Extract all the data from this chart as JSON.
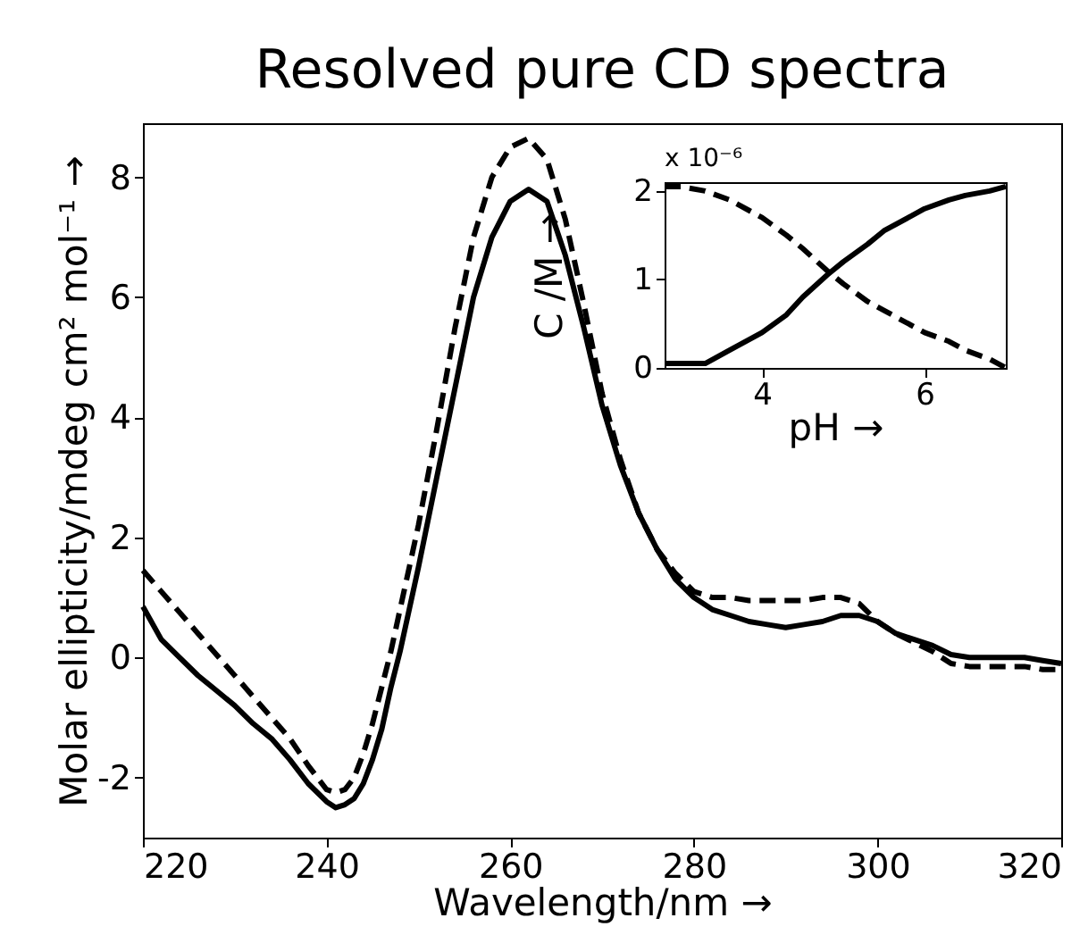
{
  "chart_data": [
    {
      "type": "line",
      "title": "Resolved pure CD spectra",
      "xlabel": "Wavelength/nm →",
      "ylabel": "Molar ellipticity/mdeg cm² mol⁻¹ →",
      "xlim": [
        220,
        320
      ],
      "ylim": [
        -3,
        8.9
      ],
      "xticks": [
        220,
        240,
        260,
        280,
        300,
        320
      ],
      "yticks": [
        -2,
        0,
        2,
        4,
        6,
        8
      ],
      "grid": false,
      "legend": false,
      "x": [
        220,
        222,
        224,
        226,
        228,
        230,
        232,
        234,
        236,
        238,
        240,
        241,
        242,
        243,
        244,
        245,
        246,
        247,
        248,
        250,
        252,
        254,
        256,
        258,
        260,
        262,
        264,
        266,
        268,
        270,
        272,
        274,
        276,
        278,
        280,
        282,
        284,
        286,
        288,
        290,
        292,
        294,
        296,
        298,
        300,
        302,
        304,
        306,
        308,
        310,
        312,
        314,
        316,
        318,
        320
      ],
      "series": [
        {
          "color": "#000000",
          "line_style": "solid",
          "values": [
            0.85,
            0.3,
            0.0,
            -0.3,
            -0.55,
            -0.8,
            -1.1,
            -1.35,
            -1.7,
            -2.1,
            -2.4,
            -2.5,
            -2.45,
            -2.35,
            -2.1,
            -1.7,
            -1.2,
            -0.5,
            0.1,
            1.5,
            3.0,
            4.5,
            6.0,
            7.0,
            7.6,
            7.8,
            7.6,
            6.7,
            5.5,
            4.2,
            3.2,
            2.4,
            1.8,
            1.3,
            1.0,
            0.8,
            0.7,
            0.6,
            0.55,
            0.5,
            0.55,
            0.6,
            0.7,
            0.7,
            0.6,
            0.4,
            0.3,
            0.2,
            0.05,
            0.0,
            0.0,
            0.0,
            0.0,
            -0.05,
            -0.1
          ]
        },
        {
          "color": "#000000",
          "line_style": "dashed",
          "values": [
            1.45,
            1.1,
            0.75,
            0.4,
            0.05,
            -0.3,
            -0.65,
            -1.0,
            -1.35,
            -1.8,
            -2.2,
            -2.25,
            -2.2,
            -2.0,
            -1.6,
            -1.1,
            -0.5,
            0.1,
            0.8,
            2.2,
            3.8,
            5.5,
            7.0,
            8.0,
            8.5,
            8.65,
            8.3,
            7.3,
            5.9,
            4.4,
            3.3,
            2.4,
            1.8,
            1.4,
            1.1,
            1.0,
            1.0,
            0.95,
            0.95,
            0.95,
            0.95,
            1.0,
            1.0,
            0.9,
            0.6,
            0.4,
            0.25,
            0.1,
            -0.1,
            -0.15,
            -0.15,
            -0.15,
            -0.15,
            -0.2,
            -0.2
          ]
        }
      ]
    },
    {
      "type": "line",
      "xlabel": "pH →",
      "ylabel": "C /M →",
      "annotations": [
        "x 10⁻⁶"
      ],
      "xlim": [
        2.8,
        7
      ],
      "ylim": [
        0,
        2.1
      ],
      "xticks": [
        4,
        6
      ],
      "yticks": [
        {
          "value": 0,
          "label": "0"
        },
        {
          "value": 1,
          "label": "1"
        },
        {
          "value": 2,
          "label": "2"
        }
      ],
      "grid": false,
      "legend": false,
      "x": [
        2.8,
        3.0,
        3.3,
        3.6,
        4.0,
        4.3,
        4.5,
        4.8,
        5.0,
        5.3,
        5.5,
        5.8,
        6.0,
        6.3,
        6.5,
        6.8,
        7.0
      ],
      "series": [
        {
          "color": "#000000",
          "line_style": "solid",
          "values": [
            0.05,
            0.05,
            0.05,
            0.2,
            0.4,
            0.6,
            0.8,
            1.05,
            1.2,
            1.4,
            1.55,
            1.7,
            1.8,
            1.9,
            1.95,
            2.0,
            2.05
          ]
        },
        {
          "color": "#000000",
          "line_style": "dashed",
          "values": [
            2.05,
            2.05,
            2.0,
            1.9,
            1.7,
            1.5,
            1.35,
            1.1,
            0.95,
            0.75,
            0.65,
            0.5,
            0.4,
            0.3,
            0.2,
            0.1,
            0.0
          ]
        }
      ]
    }
  ]
}
